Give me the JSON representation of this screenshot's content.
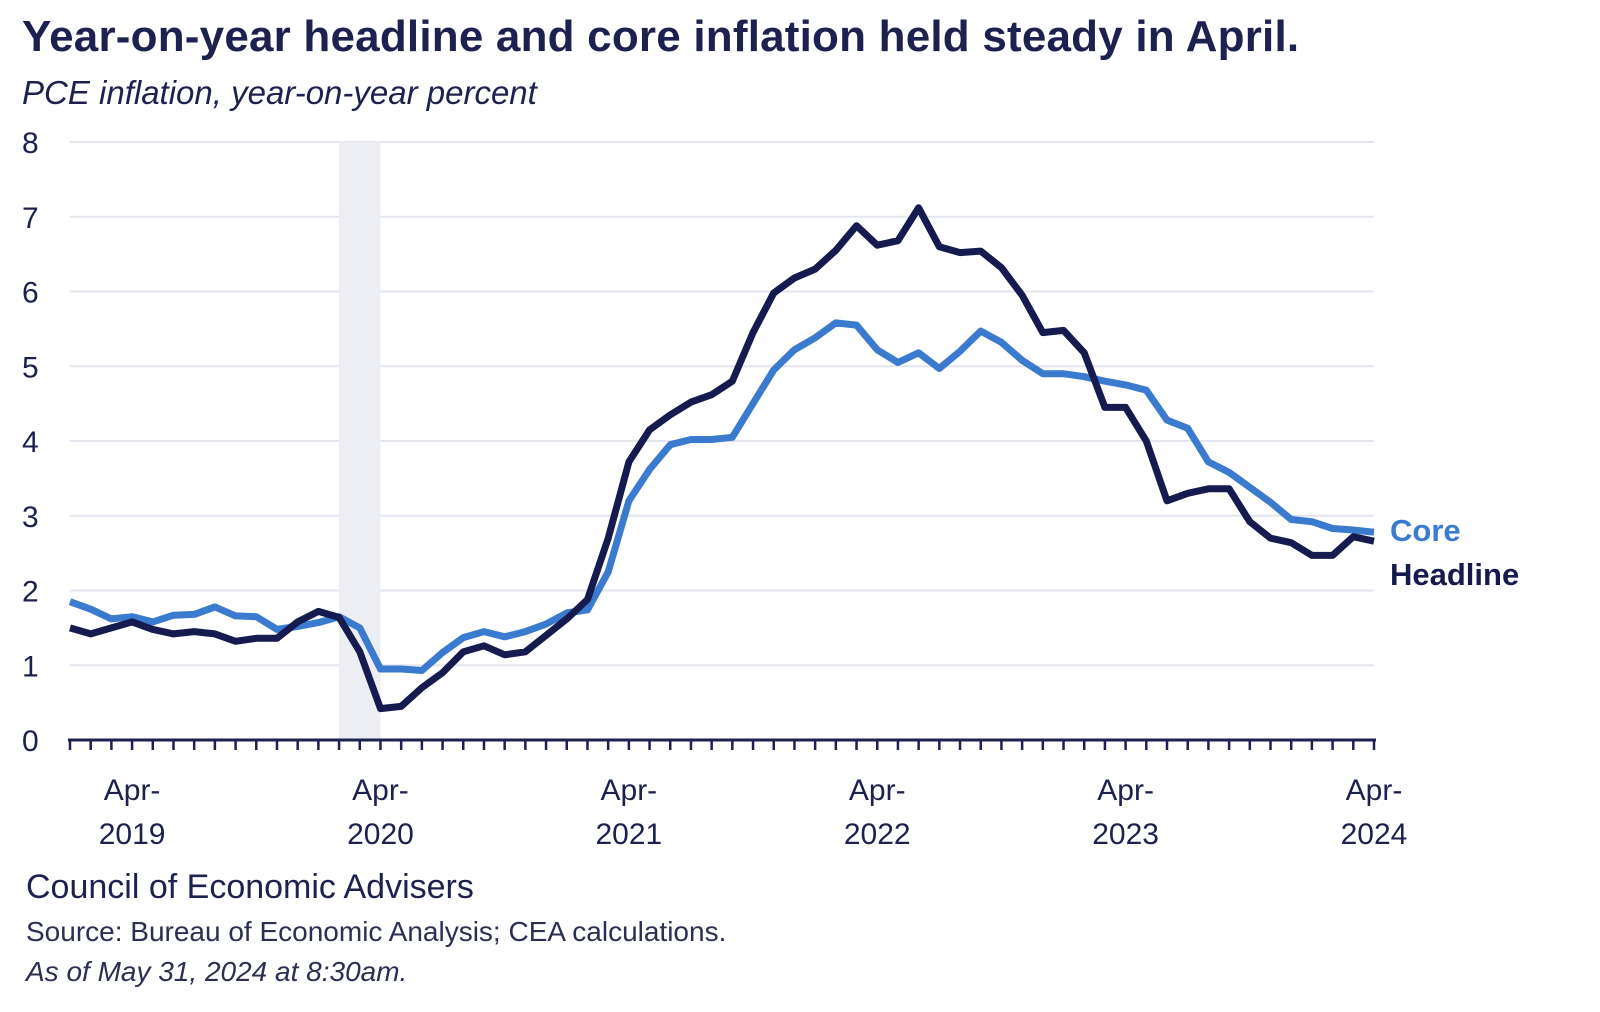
{
  "title": "Year-on-year headline and core inflation held steady in April.",
  "subtitle": "PCE inflation, year-on-year percent",
  "footer": {
    "org": "Council of Economic Advisers",
    "source": "Source: Bureau of Economic Analysis; CEA calculations.",
    "as_of": "As of May 31, 2024 at 8:30am."
  },
  "colors": {
    "headline": "#151a4f",
    "core": "#3a7bd0",
    "grid": "#e3e6ef",
    "recession": "#eceef4",
    "axis": "#1c2150"
  },
  "chart_data": {
    "type": "line",
    "ylim": [
      0,
      8
    ],
    "yticks": [
      0,
      1,
      2,
      3,
      4,
      5,
      6,
      7,
      8
    ],
    "x_start": "Jan 2019",
    "x_end": "Apr 2024",
    "xtick_labels": [
      {
        "line1": "Apr-",
        "line2": "2019"
      },
      {
        "line1": "Apr-",
        "line2": "2020"
      },
      {
        "line1": "Apr-",
        "line2": "2021"
      },
      {
        "line1": "Apr-",
        "line2": "2022"
      },
      {
        "line1": "Apr-",
        "line2": "2023"
      },
      {
        "line1": "Apr-",
        "line2": "2024"
      }
    ],
    "xtick_months": [
      "Apr 2019",
      "Apr 2020",
      "Apr 2021",
      "Apr 2022",
      "Apr 2023",
      "Apr 2024"
    ],
    "shaded_period": {
      "start": "Feb 2020",
      "end": "Apr 2020"
    },
    "series": [
      {
        "name": "Core",
        "values": [
          1.85,
          1.75,
          1.62,
          1.65,
          1.58,
          1.67,
          1.68,
          1.78,
          1.66,
          1.65,
          1.48,
          1.52,
          1.57,
          1.65,
          1.5,
          0.95,
          0.95,
          0.93,
          1.17,
          1.37,
          1.45,
          1.38,
          1.45,
          1.55,
          1.7,
          1.74,
          2.25,
          3.2,
          3.62,
          3.95,
          4.02,
          4.02,
          4.05,
          4.5,
          4.95,
          5.22,
          5.38,
          5.58,
          5.55,
          5.22,
          5.05,
          5.18,
          4.97,
          5.2,
          5.47,
          5.32,
          5.08,
          4.9,
          4.9,
          4.86,
          4.8,
          4.75,
          4.68,
          4.28,
          4.17,
          3.72,
          3.58,
          3.38,
          3.18,
          2.95,
          2.92,
          2.83,
          2.81,
          2.78
        ]
      },
      {
        "name": "Headline",
        "values": [
          1.5,
          1.42,
          1.5,
          1.58,
          1.48,
          1.42,
          1.45,
          1.42,
          1.32,
          1.36,
          1.36,
          1.58,
          1.72,
          1.64,
          1.18,
          0.42,
          0.45,
          0.7,
          0.9,
          1.18,
          1.26,
          1.14,
          1.18,
          1.4,
          1.62,
          1.88,
          2.7,
          3.72,
          4.15,
          4.35,
          4.52,
          4.62,
          4.8,
          5.45,
          5.98,
          6.18,
          6.3,
          6.55,
          6.88,
          6.62,
          6.68,
          7.12,
          6.6,
          6.52,
          6.54,
          6.32,
          5.95,
          5.45,
          5.48,
          5.18,
          4.45,
          4.45,
          4.0,
          3.2,
          3.3,
          3.36,
          3.36,
          2.92,
          2.7,
          2.64,
          2.47,
          2.47,
          2.72,
          2.66
        ]
      }
    ]
  }
}
